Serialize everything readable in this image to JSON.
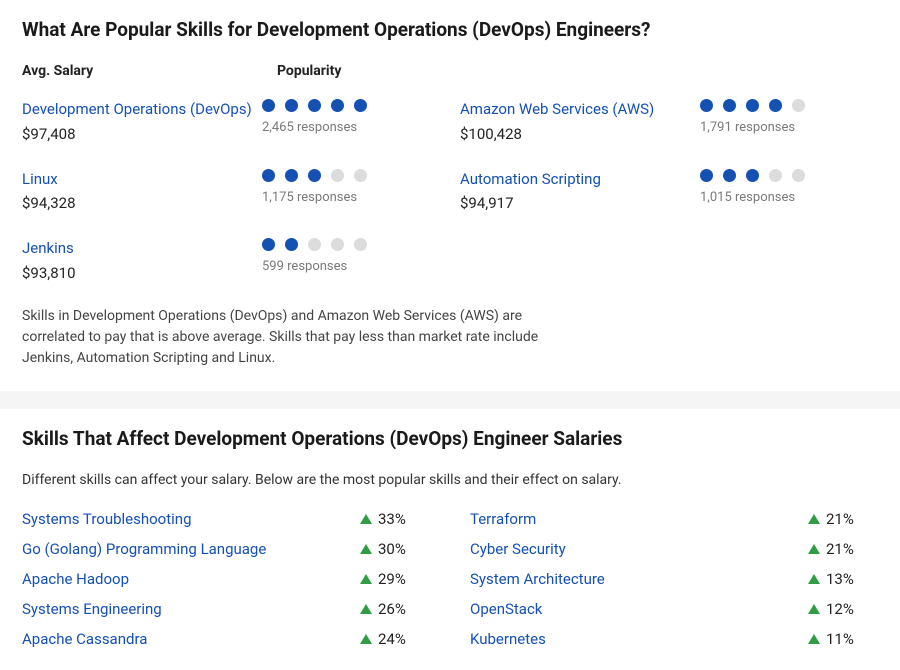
{
  "popular_panel": {
    "title": "What Are Popular Skills for Development Operations (DevOps) Engineers?",
    "header_salary": "Avg. Salary",
    "header_popularity": "Popularity",
    "skills": [
      {
        "name": "Development Operations (DevOps)",
        "salary": "$97,408",
        "dots_on": 5,
        "dots_total": 5,
        "responses": "2,465 responses"
      },
      {
        "name": "Amazon Web Services (AWS)",
        "salary": "$100,428",
        "dots_on": 4,
        "dots_total": 5,
        "responses": "1,791 responses"
      },
      {
        "name": "Linux",
        "salary": "$94,328",
        "dots_on": 3,
        "dots_total": 5,
        "responses": "1,175 responses"
      },
      {
        "name": "Automation Scripting",
        "salary": "$94,917",
        "dots_on": 3,
        "dots_total": 5,
        "responses": "1,015 responses"
      },
      {
        "name": "Jenkins",
        "salary": "$93,810",
        "dots_on": 2,
        "dots_total": 5,
        "responses": "599 responses"
      }
    ],
    "footnote": "Skills in Development Operations (DevOps) and Amazon Web Services (AWS) are correlated to pay that is above average. Skills that pay less than market rate include Jenkins, Automation Scripting and Linux."
  },
  "effect_panel": {
    "title": "Skills That Affect Development Operations (DevOps) Engineer Salaries",
    "subtitle": "Different skills can affect your salary. Below are the most popular skills and their effect on salary.",
    "left": [
      {
        "name": "Systems Troubleshooting",
        "pct": "33%"
      },
      {
        "name": "Go (Golang) Programming Language",
        "pct": "30%"
      },
      {
        "name": "Apache Hadoop",
        "pct": "29%"
      },
      {
        "name": "Systems Engineering",
        "pct": "26%"
      },
      {
        "name": "Apache Cassandra",
        "pct": "24%"
      }
    ],
    "right": [
      {
        "name": "Terraform",
        "pct": "21%"
      },
      {
        "name": "Cyber Security",
        "pct": "21%"
      },
      {
        "name": "System Architecture",
        "pct": "13%"
      },
      {
        "name": "OpenStack",
        "pct": "12%"
      },
      {
        "name": "Kubernetes",
        "pct": "11%"
      }
    ]
  },
  "colors": {
    "link": "#1550b3",
    "dot_on": "#1550b3",
    "dot_off": "#dcdcdc",
    "triangle": "#2e9e44",
    "background": "#f5f5f5",
    "panel": "#ffffff"
  }
}
